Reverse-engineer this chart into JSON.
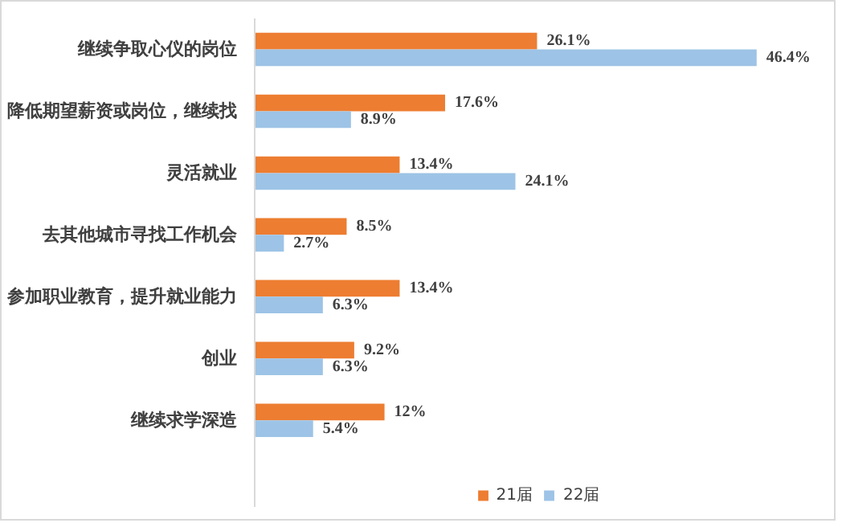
{
  "chart_data": {
    "type": "bar",
    "orientation": "horizontal",
    "categories": [
      "继续争取心仪的岗位",
      "降低期望薪资或岗位，继续找",
      "灵活就业",
      "去其他城市寻找工作机会",
      "参加职业教育，提升就业能力",
      "创业",
      "继续求学深造"
    ],
    "series": [
      {
        "name": "21届",
        "color": "#ed7d31",
        "values": [
          26.1,
          17.6,
          13.4,
          8.5,
          13.4,
          9.2,
          12
        ],
        "value_labels": [
          "26.1%",
          "17.6%",
          "13.4%",
          "8.5%",
          "13.4%",
          "9.2%",
          "12%"
        ]
      },
      {
        "name": "22届",
        "color": "#9dc3e6",
        "values": [
          46.4,
          8.9,
          24.1,
          2.7,
          6.3,
          6.3,
          5.4
        ],
        "value_labels": [
          "46.4%",
          "8.9%",
          "24.1%",
          "2.7%",
          "6.3%",
          "6.3%",
          "5.4%"
        ]
      }
    ],
    "grid": false,
    "legend": "bottom"
  }
}
